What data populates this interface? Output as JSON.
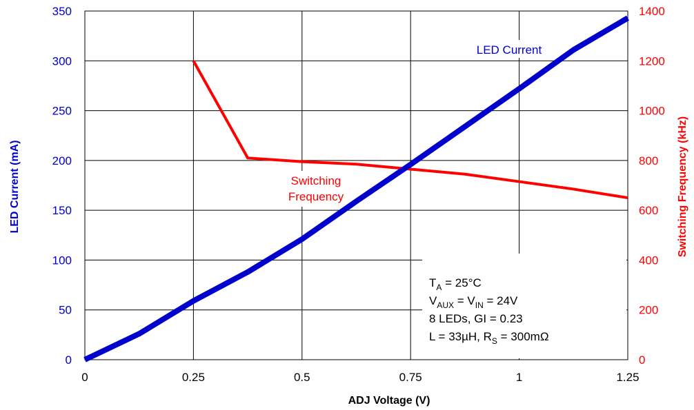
{
  "colors": {
    "led_current": "#0000cc",
    "switching_frequency": "#ff0000",
    "grid": "#000000",
    "background": "#ffffff"
  },
  "chart_data": {
    "type": "line",
    "xlabel": "ADJ Voltage (V)",
    "ylabel_left": "LED Current (mA)",
    "ylabel_right": "Switching Frequency (kHz)",
    "xlim": [
      0,
      1.25
    ],
    "ylim_left": [
      0,
      350
    ],
    "ylim_right": [
      0,
      1400
    ],
    "x_ticks": [
      "0",
      "0.25",
      "0.5",
      "0.75",
      "1",
      "1.25"
    ],
    "y_left_ticks": [
      "0",
      "50",
      "100",
      "150",
      "200",
      "250",
      "300",
      "350"
    ],
    "y_right_ticks": [
      "0",
      "200",
      "400",
      "600",
      "800",
      "1000",
      "1200",
      "1400"
    ],
    "grid": true,
    "series": [
      {
        "name": "LED Current",
        "axis": "left",
        "x": [
          0,
          0.125,
          0.25,
          0.375,
          0.5,
          0.625,
          0.75,
          0.875,
          1.0,
          1.125,
          1.25
        ],
        "y": [
          0,
          26,
          59,
          88,
          121,
          159,
          196,
          234,
          272,
          311,
          343
        ]
      },
      {
        "name": "Switching Frequency",
        "label_lines": [
          "Switching",
          "Frequency"
        ],
        "axis": "right",
        "x": [
          0.25,
          0.375,
          0.5,
          0.625,
          0.75,
          0.875,
          1.0,
          1.125,
          1.25
        ],
        "y": [
          1200,
          810,
          795,
          785,
          765,
          745,
          715,
          685,
          650
        ]
      }
    ],
    "annotations": {
      "conditions": [
        {
          "main": "T",
          "sub": "A",
          "rest": " = 25°C"
        },
        {
          "main": "V",
          "sub": "AUX",
          "rest": " = V",
          "sub2": "IN",
          "rest2": " = 24V"
        },
        {
          "main": "8 LEDs,  GI = 0.23"
        },
        {
          "main": "L = 33µH,  R",
          "sub": "S",
          "rest": " = 300mΩ"
        }
      ]
    }
  }
}
